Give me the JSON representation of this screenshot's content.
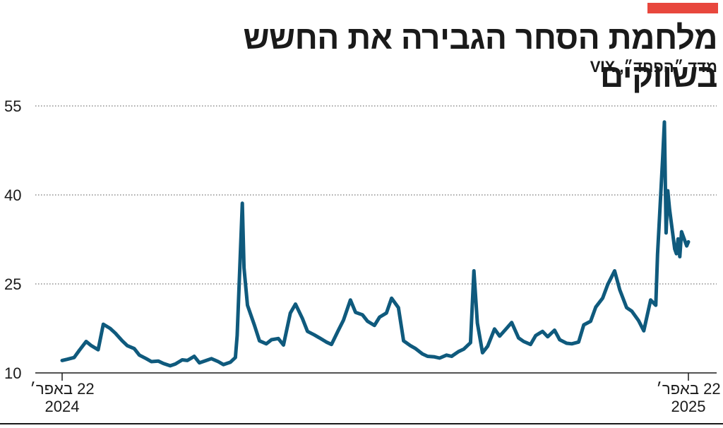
{
  "header": {
    "title": "מלחמת הסחר הגבירה את החשש בשווקים",
    "subtitle": "מדד ״הפחד״, VIX"
  },
  "colors": {
    "accent": "#e8473d",
    "line": "#0f5a7d",
    "grid": "#555555",
    "text": "#1a1a1a"
  },
  "chart_data": {
    "type": "line",
    "title": "מלחמת הסחר הגבירה את החשש בשווקים",
    "subtitle": "מדד ״הפחד״, VIX",
    "xlabel": "",
    "ylabel": "",
    "ylim": [
      10,
      55
    ],
    "y_ticks": [
      "10",
      "25",
      "40",
      "55"
    ],
    "x_ticks": [
      {
        "value": "2024-04-22",
        "label": "22 באפר׳",
        "sublabel": "2024"
      },
      {
        "value": "2025-04-22",
        "label": "22 באפר׳",
        "sublabel": "2025"
      }
    ],
    "grid": true,
    "series": [
      {
        "x": [
          "2024-04-22",
          "2024-04-25",
          "2024-04-29",
          "2024-05-02",
          "2024-05-06",
          "2024-05-09",
          "2024-05-13",
          "2024-05-16",
          "2024-05-20",
          "2024-05-23",
          "2024-05-27",
          "2024-05-30",
          "2024-06-03",
          "2024-06-06",
          "2024-06-10",
          "2024-06-13",
          "2024-06-17",
          "2024-06-20",
          "2024-06-24",
          "2024-06-27",
          "2024-07-01",
          "2024-07-04",
          "2024-07-08",
          "2024-07-11",
          "2024-07-15",
          "2024-07-18",
          "2024-07-22",
          "2024-07-25",
          "2024-07-29",
          "2024-08-01",
          "2024-08-02",
          "2024-08-05",
          "2024-08-06",
          "2024-08-08",
          "2024-08-12",
          "2024-08-15",
          "2024-08-19",
          "2024-08-22",
          "2024-08-26",
          "2024-08-29",
          "2024-09-02",
          "2024-09-05",
          "2024-09-09",
          "2024-09-12",
          "2024-09-16",
          "2024-09-19",
          "2024-09-23",
          "2024-09-26",
          "2024-09-30",
          "2024-10-03",
          "2024-10-07",
          "2024-10-10",
          "2024-10-14",
          "2024-10-17",
          "2024-10-21",
          "2024-10-24",
          "2024-10-28",
          "2024-10-31",
          "2024-11-04",
          "2024-11-07",
          "2024-11-11",
          "2024-11-14",
          "2024-11-18",
          "2024-11-21",
          "2024-11-25",
          "2024-11-28",
          "2024-12-02",
          "2024-12-05",
          "2024-12-09",
          "2024-12-12",
          "2024-12-16",
          "2024-12-18",
          "2024-12-20",
          "2024-12-23",
          "2024-12-26",
          "2024-12-30",
          "2025-01-02",
          "2025-01-06",
          "2025-01-09",
          "2025-01-13",
          "2025-01-16",
          "2025-01-20",
          "2025-01-23",
          "2025-01-27",
          "2025-01-30",
          "2025-02-03",
          "2025-02-06",
          "2025-02-10",
          "2025-02-13",
          "2025-02-17",
          "2025-02-20",
          "2025-02-24",
          "2025-02-27",
          "2025-03-03",
          "2025-03-06",
          "2025-03-10",
          "2025-03-13",
          "2025-03-17",
          "2025-03-20",
          "2025-03-24",
          "2025-03-27",
          "2025-03-31",
          "2025-04-03",
          "2025-04-04",
          "2025-04-07",
          "2025-04-08",
          "2025-04-09",
          "2025-04-10",
          "2025-04-11",
          "2025-04-14",
          "2025-04-15",
          "2025-04-16",
          "2025-04-17",
          "2025-04-18",
          "2025-04-21",
          "2025-04-22"
        ],
        "values": [
          12.1,
          12.3,
          12.6,
          13.8,
          15.3,
          14.6,
          13.9,
          18.2,
          17.5,
          16.7,
          15.4,
          14.6,
          14.1,
          13.0,
          12.4,
          11.9,
          12.0,
          11.6,
          11.2,
          11.5,
          12.2,
          12.1,
          12.8,
          11.7,
          12.1,
          12.4,
          11.9,
          11.4,
          11.8,
          12.6,
          16.3,
          38.6,
          27.7,
          21.4,
          18.1,
          15.4,
          14.9,
          15.6,
          15.8,
          14.7,
          20.1,
          21.6,
          19.2,
          17.0,
          16.4,
          15.9,
          15.2,
          14.8,
          17.2,
          18.9,
          22.3,
          20.2,
          19.8,
          18.7,
          18.0,
          19.4,
          20.1,
          22.6,
          21.0,
          15.4,
          14.6,
          14.1,
          13.2,
          12.8,
          12.7,
          12.5,
          13.0,
          12.8,
          13.6,
          14.0,
          15.1,
          27.2,
          18.4,
          13.4,
          14.5,
          17.4,
          16.2,
          17.5,
          18.5,
          15.9,
          15.3,
          14.8,
          16.3,
          17.0,
          16.1,
          17.2,
          15.6,
          15.0,
          14.9,
          15.2,
          18.1,
          18.7,
          21.1,
          22.6,
          24.9,
          27.2,
          24.0,
          21.0,
          20.4,
          18.8,
          17.1,
          22.3,
          21.4,
          30.0,
          46.1,
          52.3,
          33.6,
          40.7,
          37.6,
          30.9,
          30.1,
          32.6,
          29.6,
          33.8,
          31.4,
          32.1
        ]
      }
    ]
  }
}
